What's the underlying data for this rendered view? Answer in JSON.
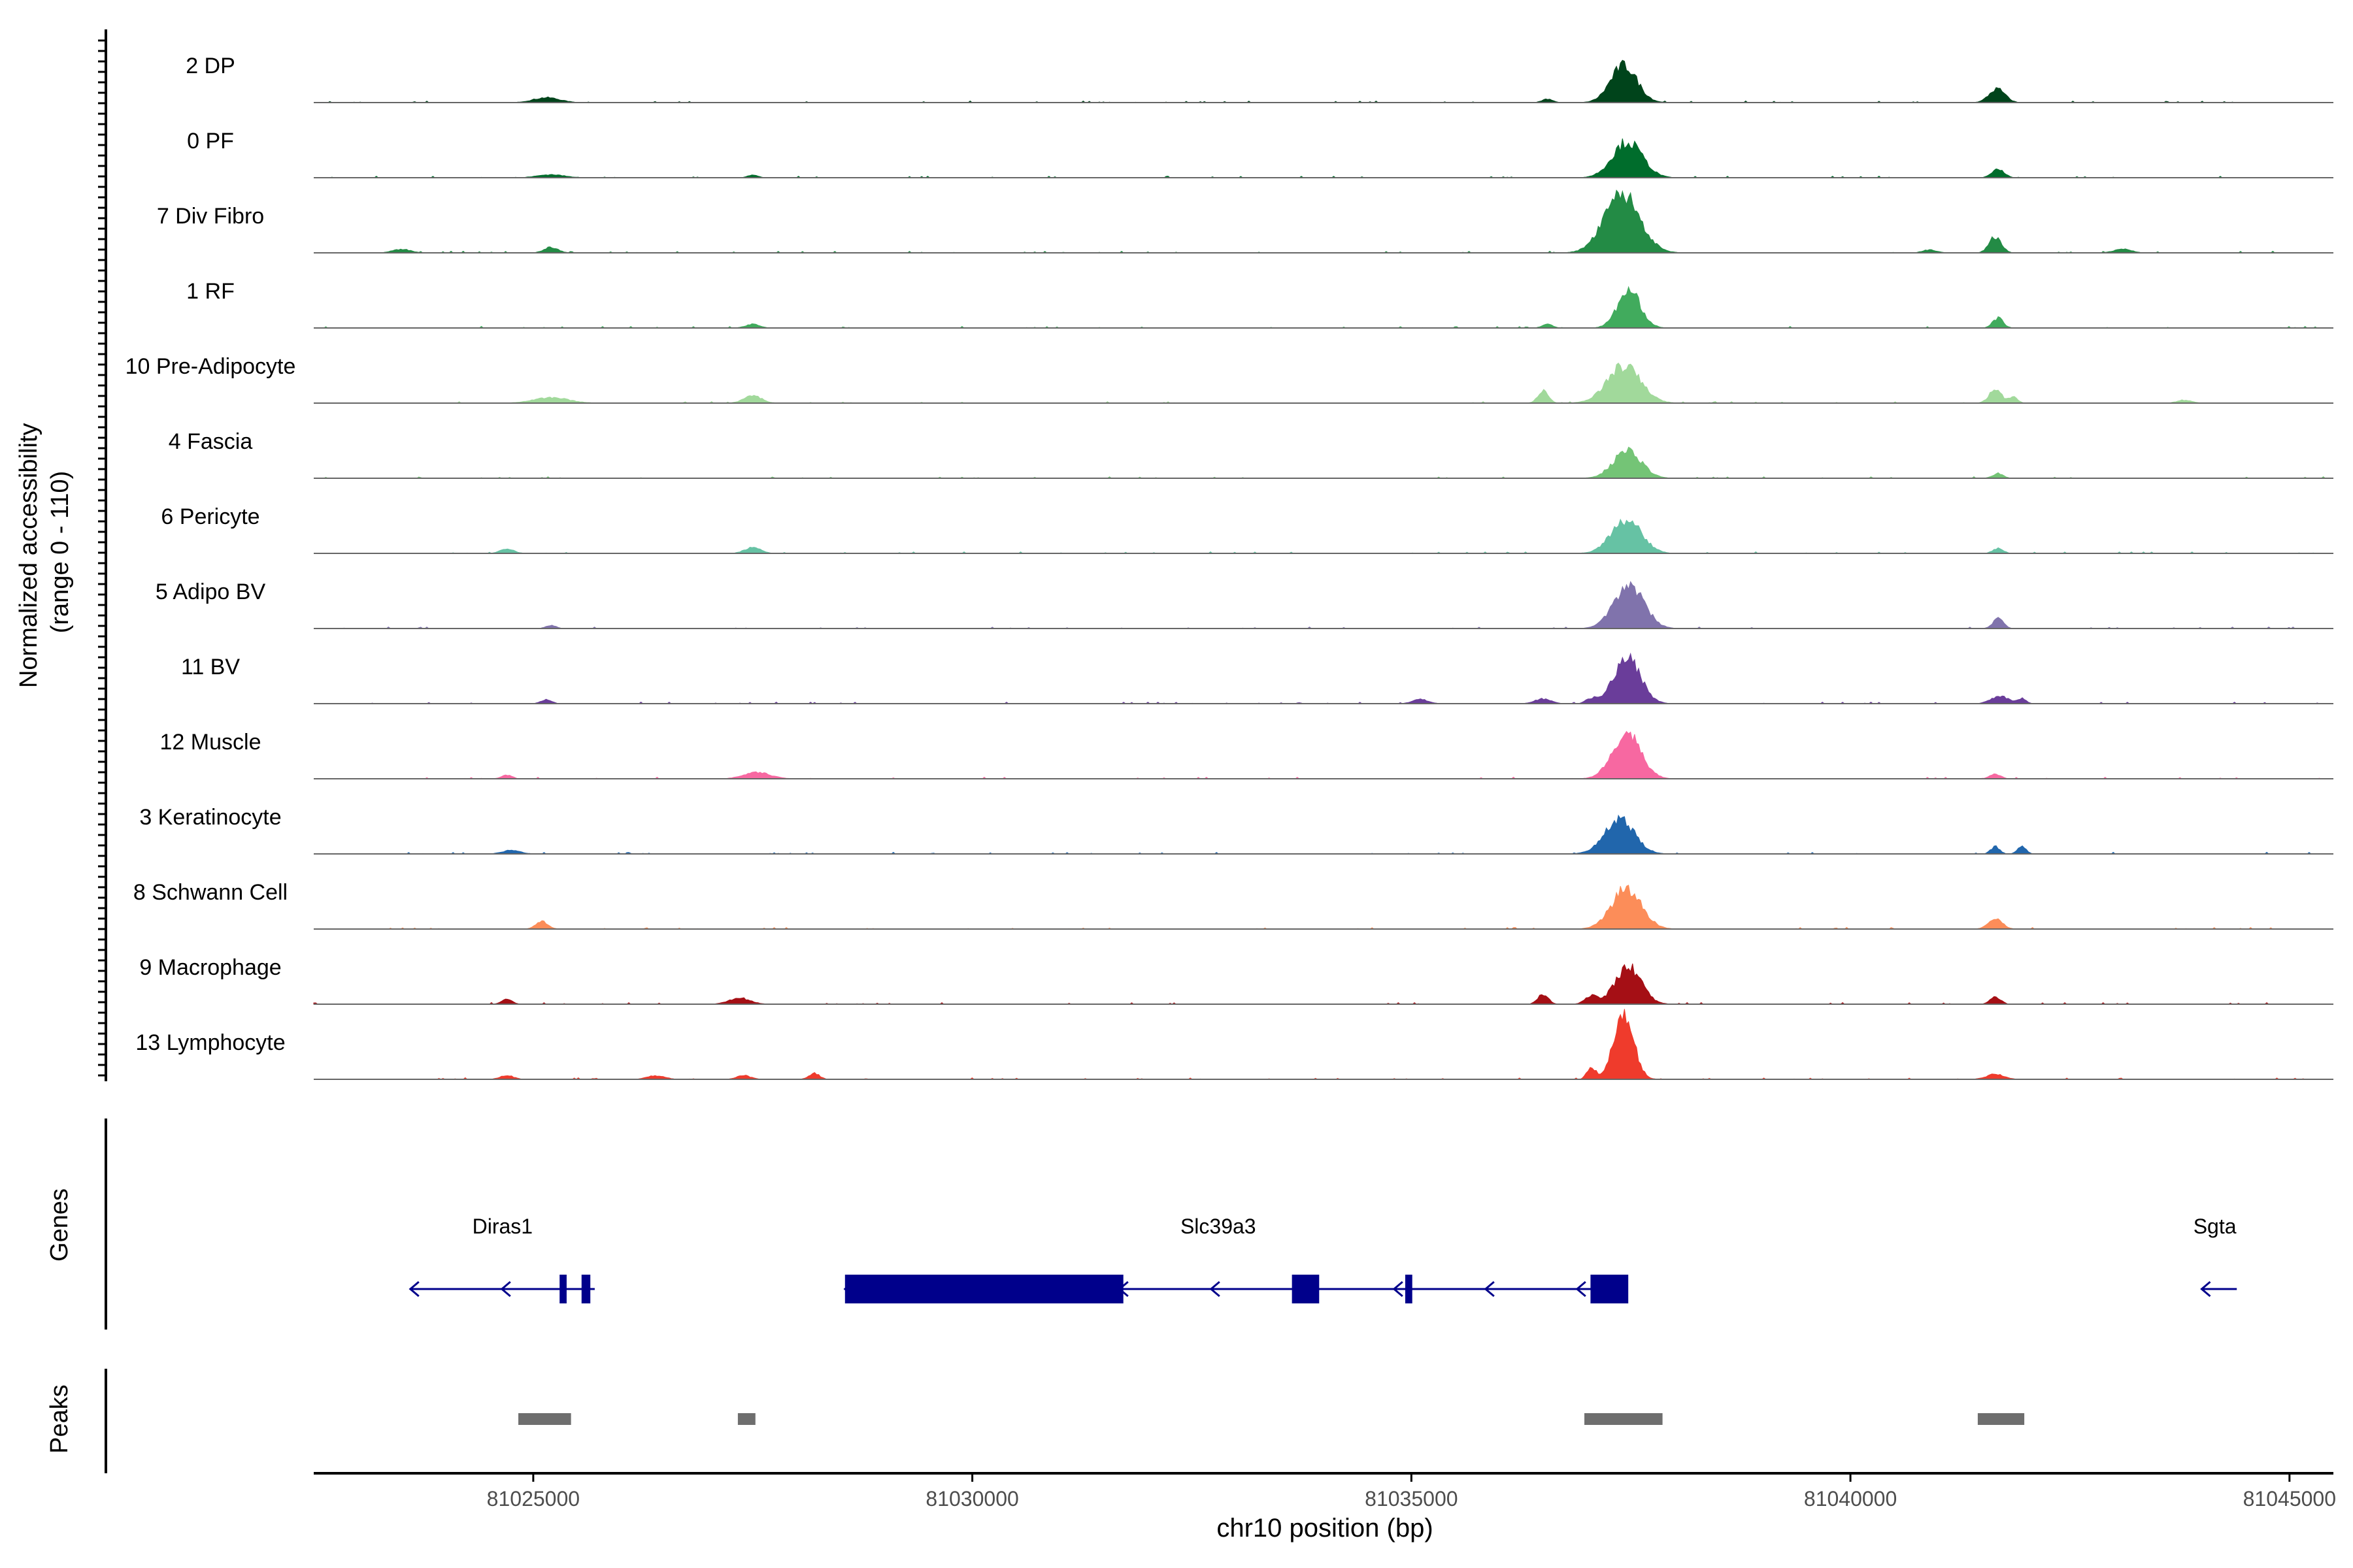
{
  "chart_data": {
    "type": "area",
    "title": "",
    "ylabel": "Normalized accessibility\n(range 0 - 110)",
    "ylim": [
      0,
      110
    ],
    "xlabel": "chr10 position (bp)",
    "chromosome": "chr10",
    "xlim": [
      81022500,
      81045500
    ],
    "x_ticks": [
      81025000,
      81030000,
      81035000,
      81040000,
      81045000
    ],
    "x_tick_labels": [
      "81025000",
      "81030000",
      "81035000",
      "81040000",
      "81045000"
    ],
    "tracks": [
      {
        "name": "2 DP",
        "color": "#00441b",
        "peaks": [
          [
            81037420,
            60,
            150
          ],
          [
            81041670,
            22,
            90
          ],
          [
            81025150,
            8,
            150
          ],
          [
            81036550,
            6,
            60
          ]
        ]
      },
      {
        "name": "0 PF",
        "color": "#006d2c",
        "peaks": [
          [
            81037460,
            58,
            170
          ],
          [
            81041680,
            14,
            70
          ],
          [
            81025200,
            5,
            150
          ],
          [
            81027500,
            4,
            60
          ]
        ]
      },
      {
        "name": "7 Div Fibro",
        "color": "#238b45",
        "peaks": [
          [
            81037400,
            95,
            200
          ],
          [
            81041650,
            26,
            70
          ],
          [
            81025200,
            9,
            80
          ],
          [
            81023500,
            6,
            100
          ],
          [
            81040900,
            5,
            80
          ],
          [
            81043100,
            6,
            100
          ]
        ]
      },
      {
        "name": "1 RF",
        "color": "#41ab5d",
        "peaks": [
          [
            81037480,
            60,
            130
          ],
          [
            81041680,
            16,
            60
          ],
          [
            81036550,
            6,
            60
          ],
          [
            81027500,
            6,
            80
          ]
        ]
      },
      {
        "name": "10 Pre-Adipocyte",
        "color": "#a1d99b",
        "peaks": [
          [
            81037420,
            60,
            190
          ],
          [
            81041650,
            22,
            70
          ],
          [
            81036500,
            20,
            60
          ],
          [
            81027500,
            12,
            100
          ],
          [
            81025200,
            9,
            200
          ],
          [
            81041850,
            10,
            50
          ],
          [
            81043800,
            5,
            80
          ]
        ]
      },
      {
        "name": "4 Fascia",
        "color": "#74c476",
        "peaks": [
          [
            81037460,
            45,
            160
          ],
          [
            81041680,
            8,
            60
          ]
        ]
      },
      {
        "name": "6 Pericyte",
        "color": "#66c2a4",
        "peaks": [
          [
            81037450,
            55,
            170
          ],
          [
            81027500,
            10,
            90
          ],
          [
            81024700,
            7,
            80
          ],
          [
            81041680,
            8,
            60
          ]
        ]
      },
      {
        "name": "5 Adipo BV",
        "color": "#8073ac",
        "peaks": [
          [
            81037480,
            70,
            170
          ],
          [
            81041680,
            16,
            60
          ],
          [
            81025200,
            5,
            60
          ]
        ]
      },
      {
        "name": "11 BV",
        "color": "#6a3d9a",
        "peaks": [
          [
            81037460,
            75,
            150
          ],
          [
            81041700,
            12,
            100
          ],
          [
            81036500,
            8,
            90
          ],
          [
            81035100,
            7,
            90
          ],
          [
            81025150,
            7,
            60
          ],
          [
            81037050,
            8,
            60
          ],
          [
            81041950,
            8,
            50
          ]
        ]
      },
      {
        "name": "12 Muscle",
        "color": "#f768a1",
        "peaks": [
          [
            81037450,
            75,
            160
          ],
          [
            81027550,
            10,
            150
          ],
          [
            81041650,
            8,
            60
          ],
          [
            81024700,
            6,
            60
          ]
        ]
      },
      {
        "name": "3 Keratinocyte",
        "color": "#2166ac",
        "peaks": [
          [
            81037370,
            55,
            170
          ],
          [
            81041650,
            12,
            50
          ],
          [
            81041950,
            12,
            50
          ],
          [
            81024750,
            6,
            100
          ]
        ]
      },
      {
        "name": "8 Schwann Cell",
        "color": "#fc8d59",
        "peaks": [
          [
            81037450,
            65,
            170
          ],
          [
            81041650,
            16,
            80
          ],
          [
            81025100,
            12,
            70
          ]
        ]
      },
      {
        "name": "9 Macrophage",
        "color": "#a50f15",
        "peaks": [
          [
            81037470,
            60,
            150
          ],
          [
            81036500,
            16,
            60
          ],
          [
            81037050,
            14,
            70
          ],
          [
            81027350,
            10,
            120
          ],
          [
            81041650,
            12,
            60
          ],
          [
            81024700,
            8,
            60
          ]
        ]
      },
      {
        "name": "13 Lymphocyte",
        "color": "#ef3b2c",
        "peaks": [
          [
            81037420,
            110,
            110
          ],
          [
            81037050,
            20,
            50
          ],
          [
            81041650,
            8,
            100
          ],
          [
            81028200,
            10,
            60
          ],
          [
            81024700,
            6,
            80
          ],
          [
            81026400,
            6,
            100
          ],
          [
            81027400,
            6,
            80
          ]
        ]
      }
    ],
    "genes_label": "Genes",
    "gene_color": "#00008b",
    "genes": [
      {
        "name": "Diras1",
        "start": 81023600,
        "end": 81025700,
        "strand": "-",
        "exons": [
          [
            81025300,
            81025380
          ],
          [
            81025550,
            81025650
          ]
        ]
      },
      {
        "name": "Slc39a3",
        "start": 81028550,
        "end": 81037450,
        "strand": "-",
        "exons": [
          [
            81028550,
            81031720
          ],
          [
            81033640,
            81033950
          ],
          [
            81034930,
            81035010
          ],
          [
            81037040,
            81037470
          ]
        ]
      },
      {
        "name": "Sgta",
        "start": 81044000,
        "end": 81044400,
        "strand": "-",
        "exons": []
      }
    ],
    "peaks_label": "Peaks",
    "peak_color": "#6e6e6e",
    "peak_regions": [
      [
        81024830,
        81025430
      ],
      [
        81027330,
        81027530
      ],
      [
        81036970,
        81037860
      ],
      [
        81041450,
        81041980
      ]
    ]
  }
}
